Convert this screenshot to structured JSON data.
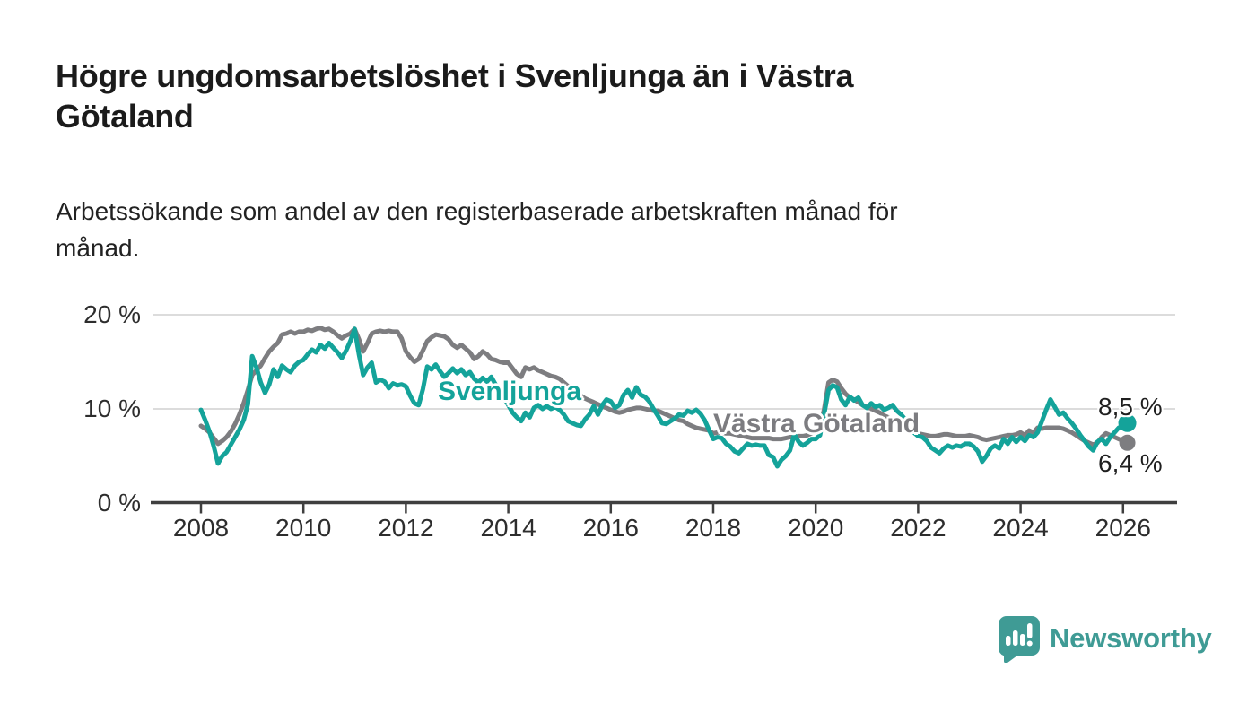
{
  "header": {
    "title_lines": [
      "Högre ungdomsarbetslöshet i Svenljunga än i Västra",
      "Götaland"
    ],
    "subtitle_lines": [
      "Arbetssökande som andel av den registerbaserade arbetskraften månad för",
      "månad."
    ]
  },
  "chart_data": {
    "type": "line",
    "title": "Högre ungdomsarbetslöshet i Svenljunga än i Västra Götaland",
    "subtitle": "Arbetssökande som andel av den registerbaserade arbetskraften månad för månad.",
    "xlabel": "",
    "ylabel": "",
    "unit": "%",
    "x_start": "2008-01",
    "x_end": "2026-02",
    "x_frequency": "monthly",
    "x_ticks": [
      2008,
      2010,
      2012,
      2014,
      2016,
      2018,
      2020,
      2022,
      2024,
      2026
    ],
    "y_ticks": [
      {
        "label": "20 %",
        "value": 20
      },
      {
        "label": "10 %",
        "value": 10
      },
      {
        "label": "0 %",
        "value": 0
      }
    ],
    "ylim": [
      0,
      21
    ],
    "grid": "horizontal",
    "legend_position": "inline-labels",
    "series": [
      {
        "name": "Västra Götaland",
        "color": "#7d7d80",
        "end_value_label": "6,4 %",
        "end_value": 6.4,
        "values": [
          8.2,
          7.9,
          7.5,
          6.9,
          6.3,
          6.6,
          7.0,
          7.6,
          8.4,
          9.4,
          10.6,
          12.0,
          13.6,
          14.1,
          14.6,
          15.4,
          16.1,
          16.6,
          17.0,
          17.9,
          18.0,
          18.2,
          18.0,
          18.2,
          18.2,
          18.4,
          18.3,
          18.5,
          18.6,
          18.4,
          18.5,
          18.2,
          17.8,
          17.5,
          17.8,
          18.0,
          18.5,
          17.4,
          16.1,
          17.0,
          18.0,
          18.2,
          18.3,
          18.2,
          18.3,
          18.2,
          18.2,
          17.5,
          16.1,
          15.5,
          15.0,
          15.3,
          16.2,
          17.2,
          17.6,
          17.9,
          17.8,
          17.7,
          17.4,
          16.8,
          16.5,
          16.8,
          16.4,
          16.0,
          15.3,
          15.6,
          16.1,
          15.8,
          15.3,
          15.2,
          15.0,
          14.9,
          14.9,
          14.3,
          13.7,
          13.4,
          14.4,
          14.2,
          14.4,
          14.1,
          13.9,
          13.7,
          13.5,
          13.4,
          13.2,
          12.8,
          12.4,
          12.0,
          11.7,
          11.4,
          11.1,
          10.9,
          10.7,
          10.5,
          10.3,
          10.1,
          9.9,
          9.7,
          9.6,
          9.7,
          9.9,
          10.0,
          10.1,
          10.1,
          10.0,
          9.9,
          9.8,
          9.8,
          9.6,
          9.4,
          9.2,
          9.0,
          8.8,
          8.7,
          8.4,
          8.2,
          8.0,
          7.9,
          7.8,
          7.7,
          7.4,
          7.5,
          7.5,
          7.4,
          7.4,
          7.3,
          7.2,
          7.1,
          7.0,
          6.9,
          6.9,
          6.9,
          6.9,
          6.9,
          6.8,
          6.8,
          6.8,
          6.9,
          7.0,
          7.0,
          7.1,
          7.1,
          7.2,
          7.4,
          7.7,
          8.0,
          10.0,
          12.8,
          13.1,
          12.9,
          12.2,
          11.6,
          11.2,
          11.0,
          10.7,
          10.4,
          10.2,
          10.0,
          9.8,
          9.6,
          9.3,
          9.1,
          8.9,
          8.7,
          8.4,
          8.1,
          7.8,
          7.6,
          7.4,
          7.3,
          7.2,
          7.1,
          7.1,
          7.2,
          7.3,
          7.3,
          7.2,
          7.1,
          7.1,
          7.1,
          7.2,
          7.1,
          7.0,
          6.8,
          6.7,
          6.8,
          6.9,
          7.0,
          7.1,
          7.2,
          7.2,
          7.3,
          7.5,
          7.2,
          7.7,
          7.5,
          8.0,
          7.9,
          8.0,
          8.0,
          8.0,
          8.0,
          7.9,
          7.7,
          7.5,
          7.2,
          6.9,
          6.6,
          6.4,
          6.2,
          6.4,
          7.0,
          7.4,
          7.2,
          7.0,
          6.8,
          6.6,
          6.4
        ]
      },
      {
        "name": "Svenljunga",
        "color": "#14a39a",
        "end_value_label": "8,5 %",
        "end_value": 8.5,
        "values": [
          9.9,
          8.8,
          7.6,
          6.0,
          4.2,
          5.0,
          5.4,
          6.2,
          7.0,
          7.8,
          8.8,
          10.5,
          15.6,
          14.4,
          12.8,
          11.7,
          12.6,
          14.2,
          13.4,
          14.6,
          14.2,
          13.9,
          14.6,
          15.0,
          15.2,
          15.8,
          16.3,
          16.0,
          16.8,
          16.4,
          17.0,
          16.5,
          16.0,
          15.4,
          16.2,
          17.2,
          18.5,
          15.8,
          13.6,
          14.4,
          14.9,
          12.8,
          13.1,
          12.9,
          12.2,
          12.7,
          12.5,
          12.6,
          12.4,
          11.4,
          10.6,
          10.4,
          12.1,
          14.5,
          14.2,
          14.7,
          14.0,
          13.4,
          13.8,
          14.3,
          13.8,
          14.2,
          13.6,
          13.9,
          13.2,
          12.8,
          13.3,
          12.9,
          13.4,
          12.6,
          12.0,
          11.2,
          10.4,
          9.6,
          9.1,
          8.7,
          9.6,
          9.1,
          10.1,
          10.4,
          10.0,
          10.3,
          10.0,
          10.2,
          9.9,
          9.4,
          8.7,
          8.5,
          8.3,
          8.2,
          8.9,
          9.4,
          10.3,
          9.4,
          10.4,
          11.0,
          10.8,
          10.1,
          10.4,
          11.5,
          12.0,
          11.2,
          12.3,
          11.5,
          11.3,
          10.8,
          10.0,
          9.3,
          8.5,
          8.4,
          8.7,
          9.0,
          9.4,
          9.3,
          9.8,
          9.6,
          9.9,
          9.5,
          8.8,
          7.8,
          6.8,
          7.0,
          6.9,
          6.3,
          6.0,
          5.5,
          5.3,
          5.8,
          6.3,
          6.1,
          6.2,
          6.1,
          6.1,
          5.1,
          4.9,
          3.9,
          4.6,
          5.0,
          5.6,
          7.3,
          6.5,
          6.1,
          6.4,
          6.8,
          6.8,
          7.2,
          9.5,
          12.0,
          12.5,
          12.3,
          11.0,
          10.4,
          11.3,
          10.9,
          11.2,
          10.4,
          10.1,
          10.6,
          10.2,
          10.4,
          9.9,
          10.1,
          10.4,
          9.8,
          9.4,
          8.9,
          8.2,
          7.5,
          7.1,
          7.0,
          6.6,
          5.9,
          5.6,
          5.3,
          5.8,
          6.1,
          5.9,
          6.1,
          6.0,
          6.3,
          6.3,
          6.0,
          5.5,
          4.4,
          5.0,
          5.8,
          6.1,
          5.8,
          6.8,
          6.3,
          7.0,
          6.5,
          7.0,
          6.6,
          7.2,
          7.0,
          7.5,
          8.7,
          9.9,
          11.0,
          10.2,
          9.4,
          9.6,
          9.0,
          8.5,
          7.9,
          7.2,
          6.6,
          6.0,
          5.6,
          6.5,
          6.8,
          6.3,
          7.0,
          7.5,
          8.0,
          8.2,
          8.5
        ]
      }
    ]
  },
  "colors": {
    "svenljunga": "#14a39a",
    "vastra_gotaland": "#7d7d80",
    "gridline": "#dcdcdc",
    "axis": "#3f3f3f",
    "brand_teal": "#3f9b95",
    "background": "#ffffff"
  },
  "footer": {
    "brand": "Newsworthy"
  }
}
